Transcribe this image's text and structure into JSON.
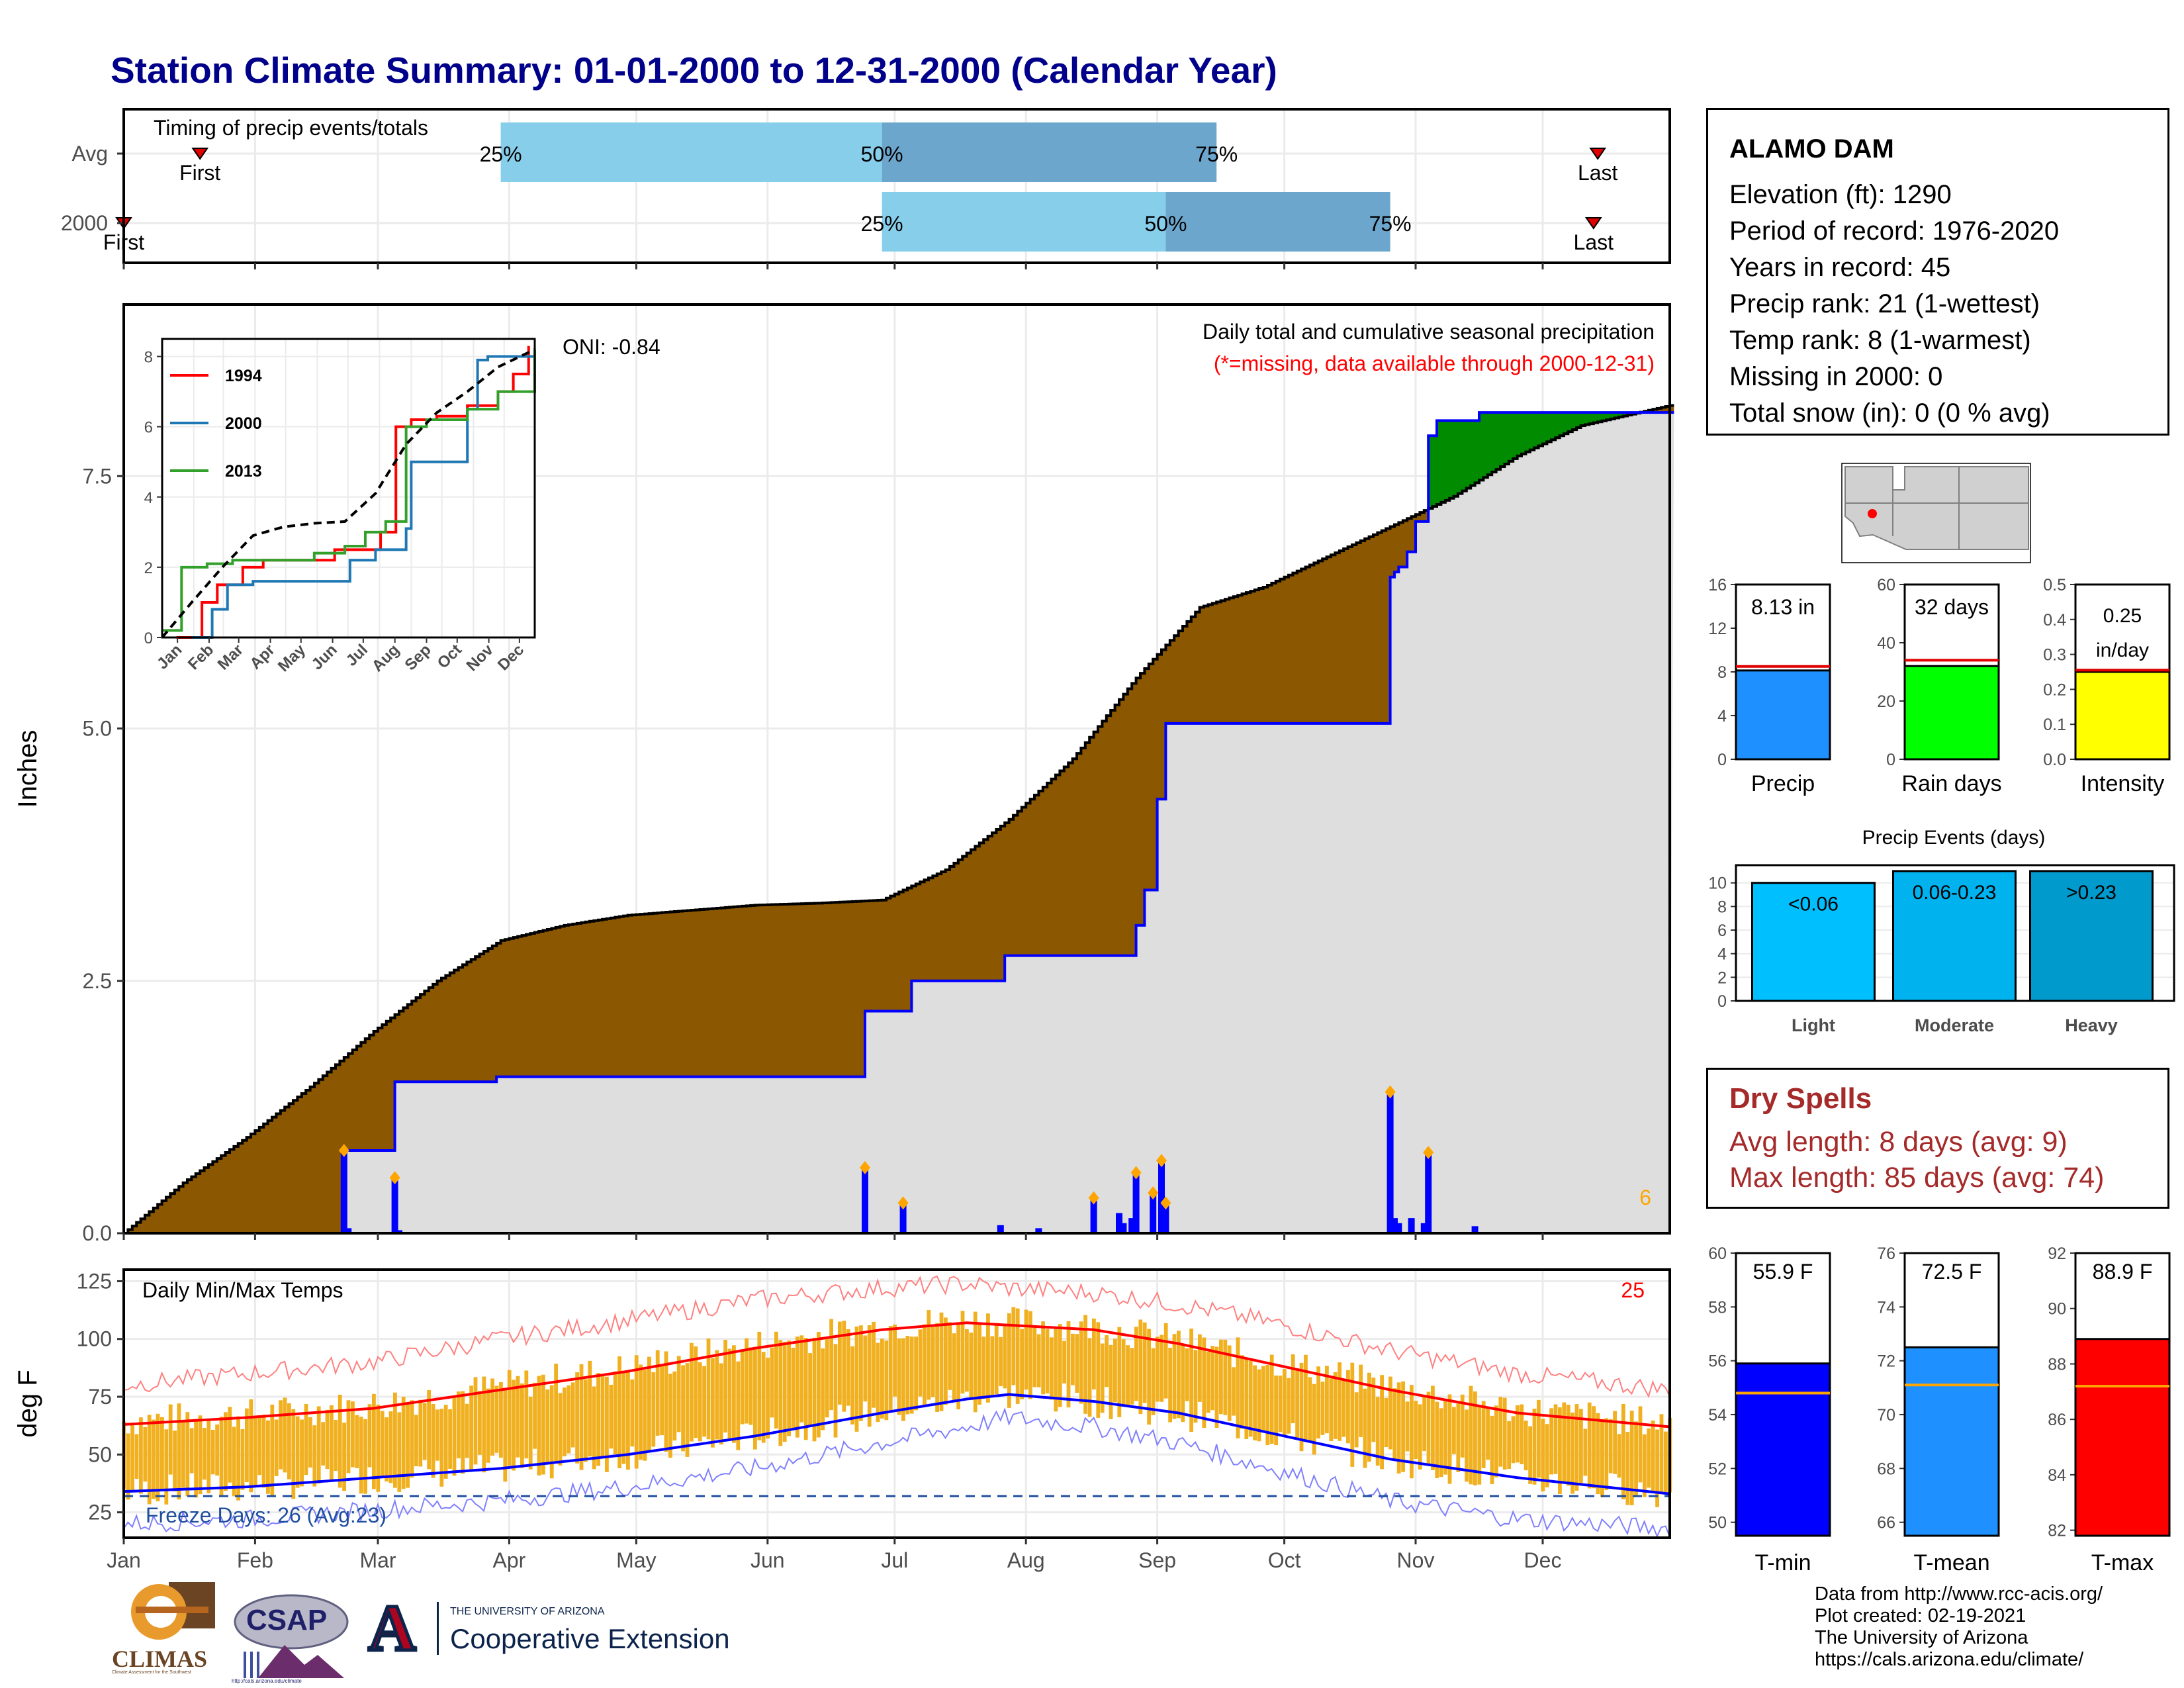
{
  "title": "Station Climate Summary: 01-01-2000 to 12-31-2000 (Calendar Year)",
  "colors": {
    "title": "#00008b",
    "brown": "#8b5700",
    "green": "#008b00",
    "grey": "#dedede",
    "blue": "#0000ff",
    "light_blue": "#87ceeb",
    "mid_blue": "#6ca6cd",
    "orange": "#ffa500",
    "gold": "#f0b020",
    "red": "#ff0000",
    "dry": "#a52a2a"
  },
  "timing": {
    "title": "Timing of precip events/totals",
    "rows": [
      {
        "label": "Avg",
        "first_label": "First",
        "last_label": "Last",
        "first_doy": 19,
        "last_doy": 349,
        "p25": 90,
        "p50": 180,
        "p75": 259,
        "p25_label": "25%",
        "p50_label": "50%",
        "p75_label": "75%"
      },
      {
        "label": "2000",
        "first_label": "First",
        "last_label": "Last",
        "first_doy": 1,
        "last_doy": 348,
        "p25": 180,
        "p50": 247,
        "p75": 300,
        "p25_label": "25%",
        "p50_label": "50%",
        "p75_label": "75%"
      }
    ]
  },
  "main": {
    "ylabel": "Inches",
    "yticks": [
      "0.0",
      "2.5",
      "5.0",
      "7.5"
    ],
    "subtitle": "Daily total and cumulative seasonal precipitation",
    "missing_note": "(*=missing, data available through 2000-12-31)",
    "oni": "ONI: -0.84",
    "missing_count": "6"
  },
  "inset": {
    "yticks": [
      "0",
      "2",
      "4",
      "6",
      "8"
    ],
    "xticks": [
      "Jan",
      "Feb",
      "Mar",
      "Apr",
      "May",
      "Jun",
      "Jul",
      "Aug",
      "Sep",
      "Oct",
      "Nov",
      "Dec"
    ],
    "legend": [
      {
        "name": "1994",
        "color": "#ff0000"
      },
      {
        "name": "2000",
        "color": "#1f78b4"
      },
      {
        "name": "2013",
        "color": "#33a02c"
      }
    ]
  },
  "temp": {
    "ylabel": "deg F",
    "yticks": [
      "25",
      "50",
      "75",
      "100",
      "125"
    ],
    "title": "Daily Min/Max Temps",
    "record_count": "25",
    "freeze_text": "Freeze Days: 26 (Avg:23)"
  },
  "months": [
    "Jan",
    "Feb",
    "Mar",
    "Apr",
    "May",
    "Jun",
    "Jul",
    "Aug",
    "Sep",
    "Oct",
    "Nov",
    "Dec"
  ],
  "station": {
    "name": "ALAMO DAM",
    "lines": [
      "Elevation (ft): 1290",
      "Period of record: 1976-2020",
      "Years in record: 45",
      "Precip rank: 21 (1-wettest)",
      "Temp rank: 8 (1-warmest)",
      "Missing in 2000: 0",
      "Total snow (in): 0 (0 % avg)"
    ]
  },
  "precip_stats": [
    {
      "label": "Precip",
      "value_label": "8.13 in",
      "value": 8.13,
      "avg": 8.5,
      "max": 16,
      "yticks": [
        "0",
        "4",
        "8",
        "12",
        "16"
      ],
      "color": "#1e90ff"
    },
    {
      "label": "Rain days",
      "value_label": "32 days",
      "value": 32,
      "avg": 34,
      "max": 60,
      "yticks": [
        "0",
        "20",
        "40",
        "60"
      ],
      "color": "#00ff00"
    },
    {
      "label": "Intensity",
      "value_label": "0.25 in/day",
      "value": 0.25,
      "avg": 0.255,
      "max": 0.5,
      "yticks": [
        "0.0",
        "0.1",
        "0.2",
        "0.3",
        "0.4",
        "0.5"
      ],
      "color": "#ffff00"
    }
  ],
  "events": {
    "title": "Precip Events (days)",
    "yticks": [
      "0",
      "2",
      "4",
      "6",
      "8",
      "10"
    ],
    "bars": [
      {
        "label": "Light",
        "value": 10,
        "range": "<0.06",
        "color": "#00bfff"
      },
      {
        "label": "Moderate",
        "value": 11,
        "range": "0.06-0.23",
        "color": "#00b2ee"
      },
      {
        "label": "Heavy",
        "value": 11,
        "range": ">0.23",
        "color": "#009acd"
      }
    ]
  },
  "dry": {
    "title": "Dry Spells",
    "avg": "Avg length: 8 days (avg: 9)",
    "max": "Max length: 85 days (avg: 74)"
  },
  "temp_stats": [
    {
      "label": "T-min",
      "value_label": "55.9 F",
      "value": 55.9,
      "avg": 54.8,
      "min": 49.5,
      "max": 60,
      "yticks": [
        "50",
        "52",
        "54",
        "56",
        "58",
        "60"
      ],
      "color": "#0000ff"
    },
    {
      "label": "T-mean",
      "value_label": "72.5 F",
      "value": 72.5,
      "avg": 71.1,
      "min": 65.5,
      "max": 76,
      "yticks": [
        "66",
        "68",
        "70",
        "72",
        "74",
        "76"
      ],
      "color": "#1e90ff"
    },
    {
      "label": "T-max",
      "value_label": "88.9 F",
      "value": 88.9,
      "avg": 87.2,
      "min": 81.8,
      "max": 92,
      "yticks": [
        "82",
        "84",
        "86",
        "88",
        "90",
        "92"
      ],
      "color": "#ff0000"
    }
  ],
  "footer": [
    "Data from http://www.rcc-acis.org/",
    "Plot created: 02-19-2021",
    "The University of Arizona",
    "https://cals.arizona.edu/climate/"
  ],
  "logos": {
    "climas": "CLIMAS",
    "climas_sub": "Climate Assessment for the Southwest",
    "csap": "CSAP",
    "csap_url": "http://cals.arizona.edu/climate",
    "ua_letter": "A",
    "ua_line1": "THE UNIVERSITY OF ARIZONA",
    "ua_line2": "Cooperative Extension"
  },
  "chart_data": [
    {
      "type": "bar",
      "name": "timing",
      "categories": [
        "Avg",
        "2000"
      ],
      "first_day_of_year": [
        19,
        1
      ],
      "last_day_of_year": [
        349,
        348
      ],
      "p25_day": [
        90,
        180
      ],
      "p50_day": [
        180,
        247
      ],
      "p75_day": [
        259,
        300
      ]
    },
    {
      "type": "area",
      "name": "cumulative precipitation",
      "ylabel": "Inches",
      "ylim": [
        0,
        9.2
      ],
      "avg_cumulative": {
        "x": [
          1,
          15,
          30,
          45,
          60,
          75,
          90,
          105,
          120,
          135,
          150,
          165,
          180,
          195,
          210,
          225,
          240,
          255,
          270,
          285,
          300,
          315,
          330,
          345,
          366
        ],
        "y": [
          0,
          0.5,
          0.95,
          1.45,
          2.0,
          2.5,
          2.9,
          3.05,
          3.15,
          3.2,
          3.25,
          3.27,
          3.3,
          3.6,
          4.1,
          4.7,
          5.5,
          6.2,
          6.4,
          6.7,
          7.0,
          7.3,
          7.7,
          8.0,
          8.2
        ]
      },
      "cumulative_2000": {
        "x": [
          1,
          52,
          53,
          64,
          65,
          88,
          89,
          175,
          176,
          186,
          187,
          208,
          209,
          239,
          240,
          241,
          242,
          244,
          245,
          246,
          247,
          248,
          299,
          300,
          301,
          302,
          303,
          304,
          305,
          306,
          307,
          308,
          309,
          310,
          311,
          320,
          321,
          366
        ],
        "y": [
          0,
          0,
          0.82,
          0.82,
          1.5,
          1.5,
          1.55,
          1.55,
          2.2,
          2.2,
          2.5,
          2.5,
          2.75,
          2.75,
          3.05,
          3.05,
          3.4,
          3.4,
          4.3,
          4.3,
          5.05,
          5.05,
          5.05,
          6.5,
          6.55,
          6.6,
          6.6,
          6.75,
          6.75,
          7.05,
          7.05,
          7.05,
          7.9,
          7.9,
          8.05,
          8.05,
          8.13,
          8.13
        ]
      },
      "daily": {
        "day": [
          53,
          54,
          65,
          66,
          176,
          185,
          208,
          217,
          230,
          236,
          237,
          239,
          240,
          244,
          246,
          247,
          300,
          301,
          302,
          305,
          308,
          309,
          320
        ],
        "inches": [
          0.82,
          0.05,
          0.55,
          0.03,
          0.65,
          0.3,
          0.08,
          0.05,
          0.35,
          0.2,
          0.1,
          0.15,
          0.6,
          0.4,
          0.72,
          0.3,
          1.4,
          0.15,
          0.1,
          0.15,
          0.1,
          0.8,
          0.07
        ]
      }
    },
    {
      "type": "line",
      "name": "inset cumulative by year",
      "ylim": [
        0,
        8.5
      ],
      "series": [
        {
          "name": "1994",
          "x": [
            15,
            40,
            55,
            80,
            100,
            130,
            170,
            200,
            215,
            230,
            245,
            270,
            300,
            330,
            345,
            360
          ],
          "y": [
            0,
            1,
            1.5,
            2,
            2.2,
            2.2,
            2.5,
            2.5,
            3,
            6,
            6.2,
            6.3,
            6.6,
            7.0,
            7.5,
            8.3
          ]
        },
        {
          "name": "2000",
          "x": [
            30,
            50,
            65,
            90,
            175,
            185,
            210,
            240,
            245,
            300,
            310,
            320,
            366
          ],
          "y": [
            0,
            0.8,
            1.5,
            1.6,
            1.6,
            2.2,
            2.5,
            3.1,
            5.0,
            6.5,
            7.9,
            8.0,
            8.13
          ]
        },
        {
          "name": "2013",
          "x": [
            1,
            20,
            45,
            70,
            100,
            150,
            180,
            200,
            220,
            240,
            260,
            300,
            330,
            366
          ],
          "y": [
            0.2,
            2,
            2.1,
            2.2,
            2.2,
            2.4,
            2.6,
            3.0,
            3.3,
            6.0,
            6.2,
            6.5,
            7.0,
            8.2
          ]
        },
        {
          "name": "Avg",
          "x": [
            1,
            30,
            60,
            90,
            120,
            150,
            180,
            210,
            240,
            270,
            300,
            330,
            366
          ],
          "y": [
            0,
            1,
            2,
            2.9,
            3.15,
            3.25,
            3.3,
            4.1,
            5.5,
            6.4,
            7.0,
            7.7,
            8.2
          ]
        }
      ]
    },
    {
      "type": "line",
      "name": "daily temperatures",
      "ylabel": "deg F",
      "ylim": [
        14,
        130
      ],
      "normal_max": {
        "x": [
          1,
          30,
          60,
          90,
          120,
          150,
          180,
          200,
          210,
          230,
          250,
          270,
          300,
          330,
          366
        ],
        "y": [
          63,
          66,
          70,
          78,
          86,
          96,
          104,
          107,
          106,
          104,
          98,
          90,
          78,
          68,
          62
        ]
      },
      "normal_min": {
        "x": [
          1,
          30,
          60,
          90,
          120,
          150,
          180,
          200,
          210,
          230,
          250,
          270,
          300,
          330,
          366
        ],
        "y": [
          34,
          36,
          40,
          44,
          50,
          58,
          68,
          74,
          76,
          73,
          68,
          60,
          48,
          40,
          33
        ]
      },
      "record_max": {
        "x": [
          1,
          30,
          60,
          90,
          120,
          150,
          180,
          200,
          210,
          230,
          250,
          270,
          300,
          330,
          366
        ],
        "y": [
          80,
          85,
          90,
          100,
          108,
          117,
          122,
          124,
          122,
          120,
          115,
          108,
          95,
          85,
          78
        ]
      },
      "record_min": {
        "x": [
          1,
          30,
          60,
          90,
          120,
          150,
          180,
          200,
          210,
          230,
          250,
          270,
          300,
          330,
          366
        ],
        "y": [
          20,
          22,
          26,
          30,
          36,
          44,
          55,
          62,
          66,
          62,
          55,
          45,
          30,
          22,
          18
        ]
      },
      "freeze_line": 32
    }
  ]
}
